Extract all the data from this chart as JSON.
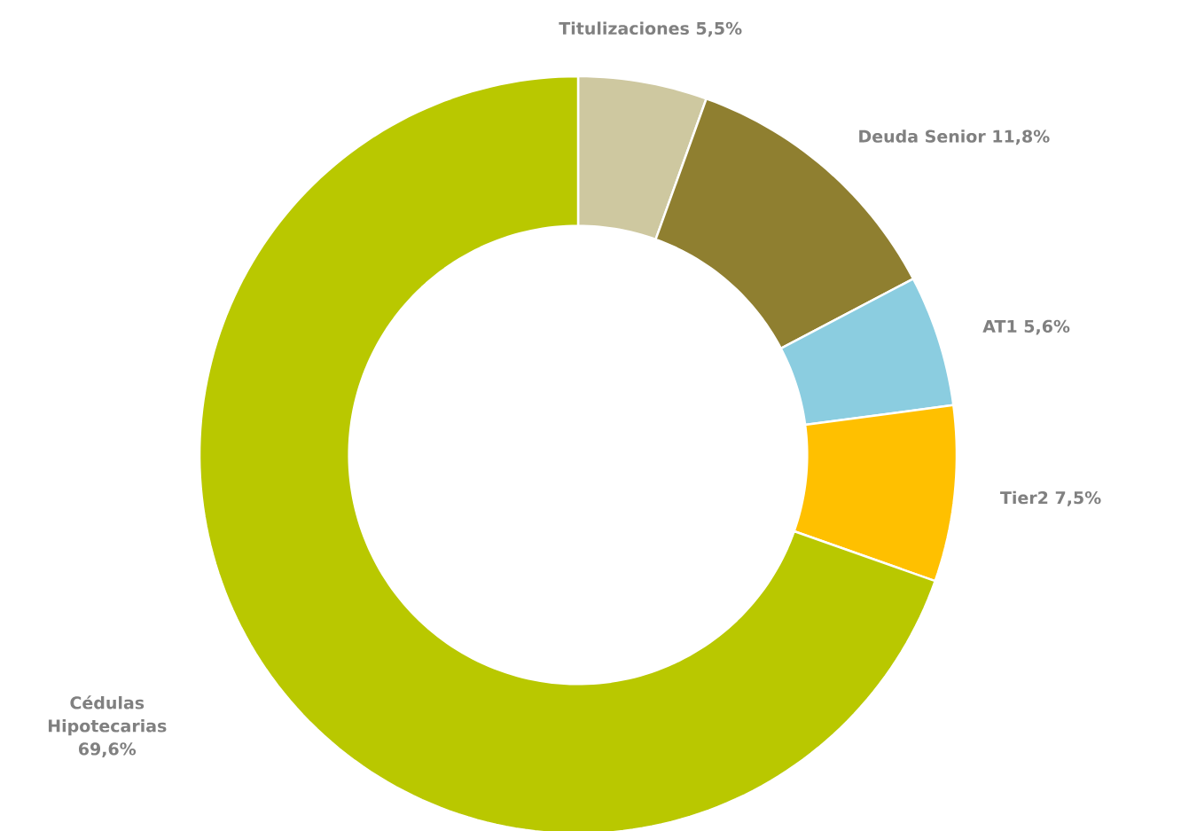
{
  "chart_data": {
    "type": "donut",
    "categories": [
      "Titulizaciones",
      "Deuda Senior",
      "AT1",
      "Tier2",
      "Cédulas Hipotecarias"
    ],
    "values": [
      5.5,
      11.8,
      5.6,
      7.5,
      69.6
    ],
    "value_labels": [
      "5,5%",
      "11,8%",
      "5,6%",
      "7,5%",
      "69,6%"
    ],
    "colors": [
      "#cec8a0",
      "#8f7f30",
      "#8bcde0",
      "#ffc000",
      "#b9c800"
    ]
  }
}
